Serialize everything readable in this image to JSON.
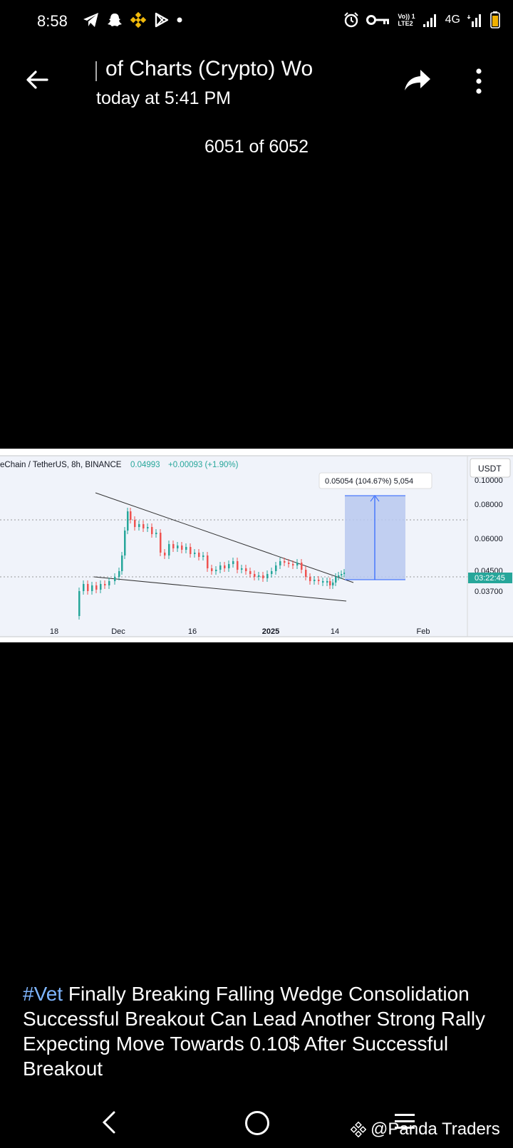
{
  "status_bar": {
    "time": "8:58",
    "network": "4G",
    "volte_line1": "Vo)) 1",
    "volte_line2": "LTE2",
    "left_icons": [
      "telegram-icon",
      "snapchat-icon",
      "binance-icon",
      "play-store-icon",
      "dot-icon"
    ],
    "right_icons": [
      "alarm-icon",
      "key-icon",
      "volte-icon",
      "signal-icon",
      "4g-signal-icon",
      "battery-icon"
    ]
  },
  "header": {
    "title": "of Charts (Crypto)   Wo",
    "subtitle": "today at 5:41 PM"
  },
  "counter": "6051 of 6052",
  "chart_data": {
    "type": "candlestick",
    "symbol_label": "eChain / TetherUS, 8h, BINANCE",
    "last_price": "0.04993",
    "change": "+0.00093 (+1.90%)",
    "currency": "USDT",
    "price_ticks": [
      "0.10000",
      "0.08000",
      "0.06000",
      "0.04500",
      "0.03700"
    ],
    "current_time_badge": "03:22:45",
    "date_ticks": [
      "18",
      "Dec",
      "16",
      "2025",
      "14",
      "Feb"
    ],
    "measure_label": "0.05054 (104.67%) 5,054",
    "accent_up": "#26a69a",
    "accent_down": "#ef5350",
    "measure_fill": "#b9c8ef",
    "measure_line": "#2962ff"
  },
  "caption": {
    "tag": "#Vet",
    "text": " Finally Breaking Falling Wedge Consolidation Successful Breakout Can Lead Another Strong Rally Expecting Move Towards 0.10$ After Successful Breakout"
  },
  "watermark": "@Panda Traders"
}
